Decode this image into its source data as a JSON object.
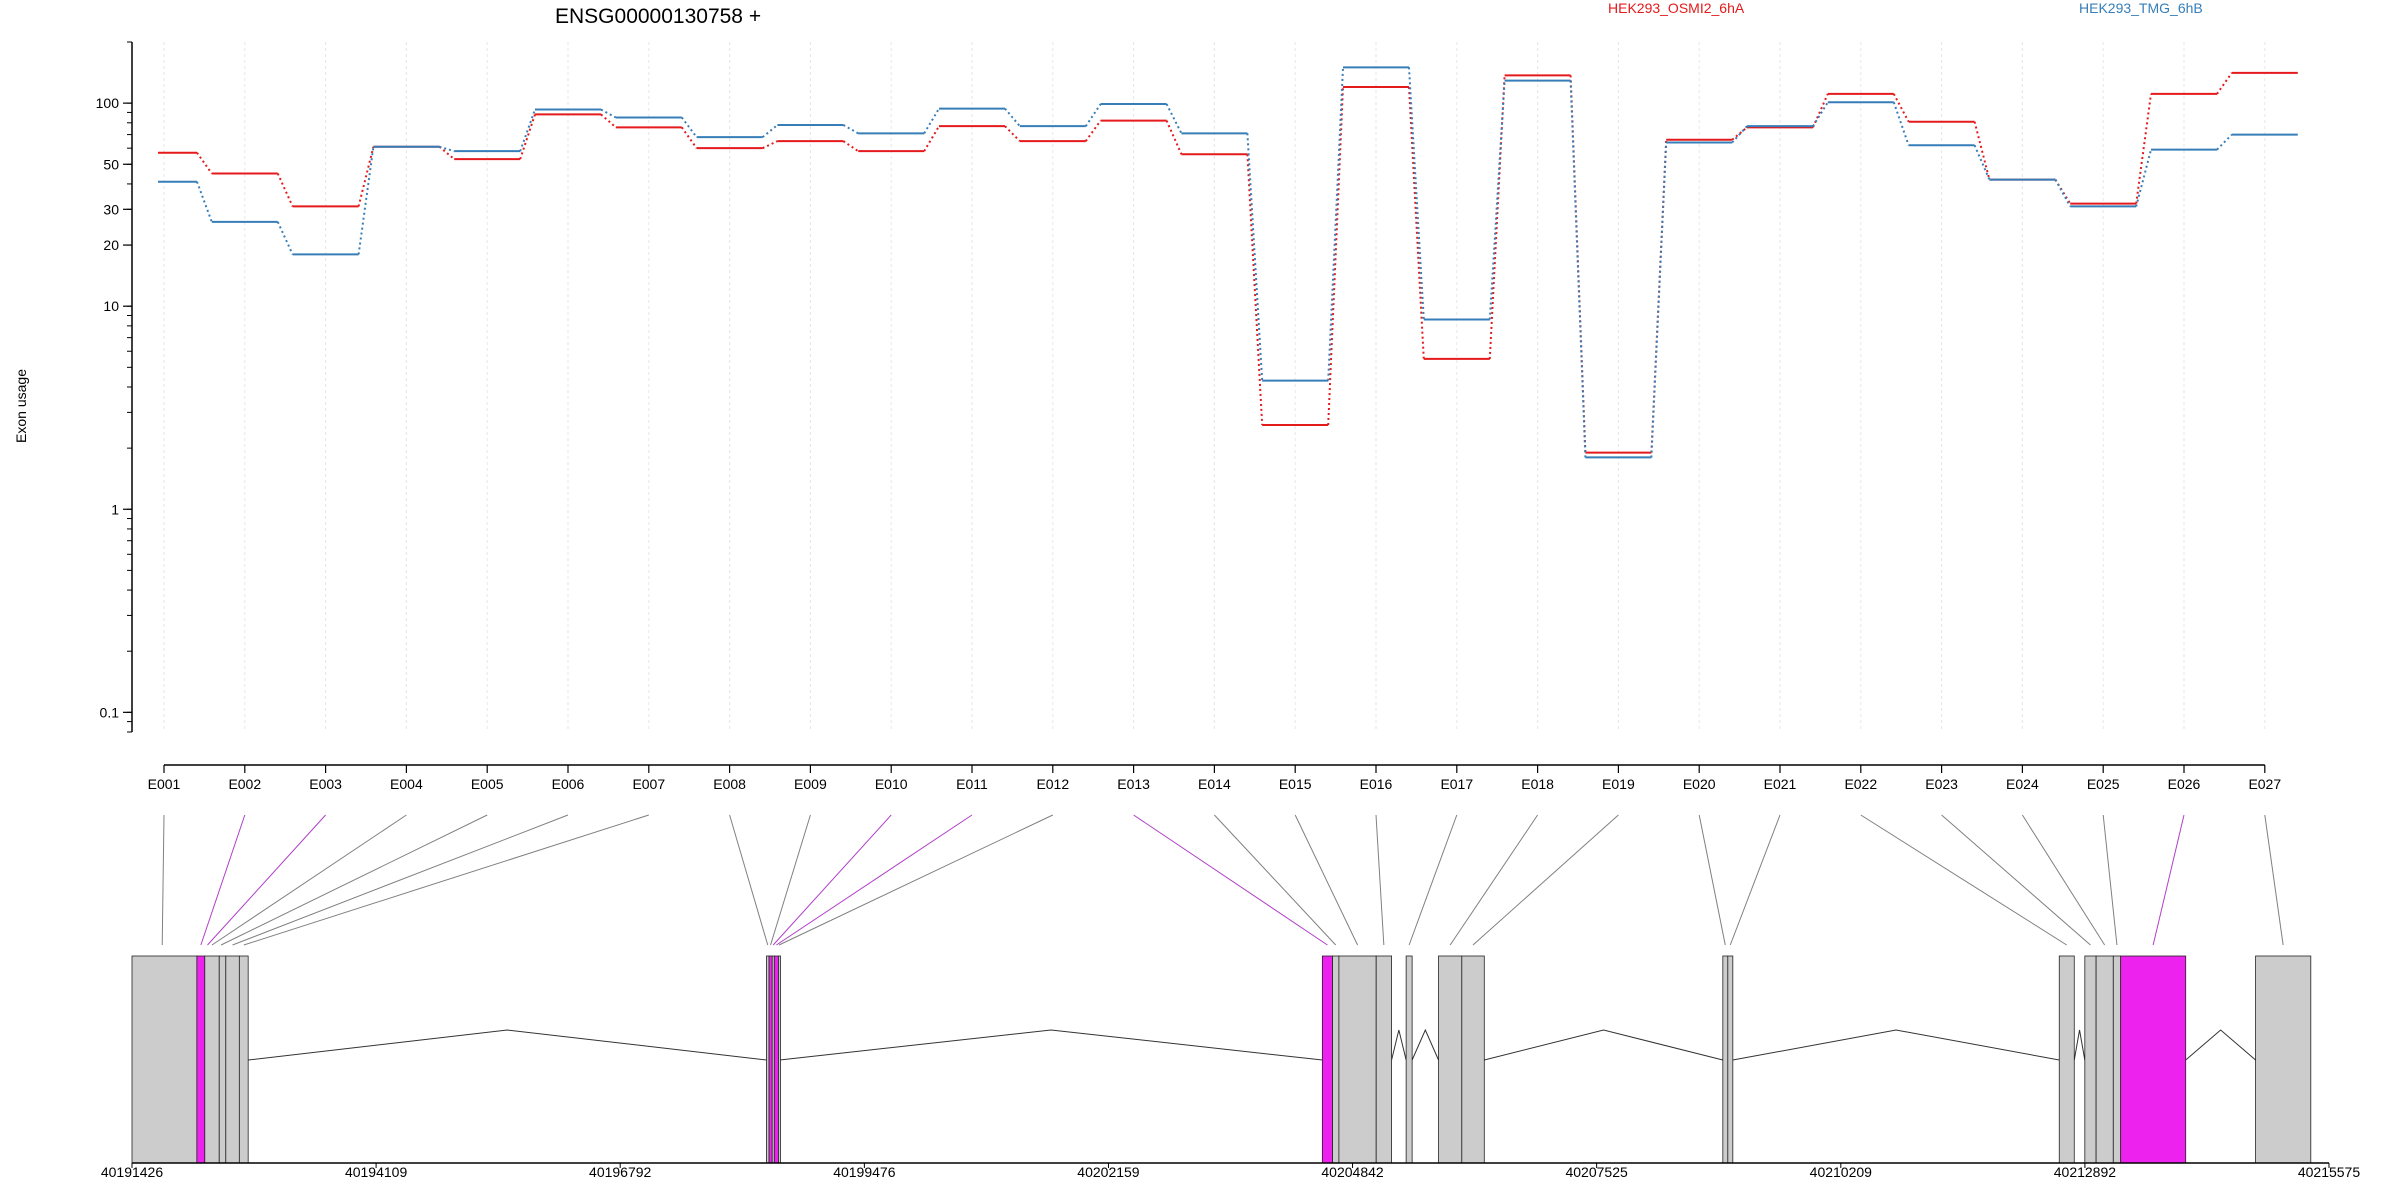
{
  "chart_data": {
    "type": "line",
    "title": "ENSG00000130758 +",
    "ylabel": "Exon usage",
    "xlabel": "",
    "y_scale": "log",
    "ylim": [
      0.08,
      200
    ],
    "y_ticks": [
      0.1,
      1,
      10,
      20,
      30,
      50,
      100
    ],
    "y_tick_labels": [
      "0.1",
      "1",
      "10",
      "20",
      "30",
      "50",
      "100"
    ],
    "grid": "vertical, per exon",
    "legend_placement": "top",
    "categories": [
      "E001",
      "E002",
      "E003",
      "E004",
      "E005",
      "E006",
      "E007",
      "E008",
      "E009",
      "E010",
      "E011",
      "E012",
      "E013",
      "E014",
      "E015",
      "E016",
      "E017",
      "E018",
      "E019",
      "E020",
      "E021",
      "E022",
      "E023",
      "E024",
      "E025",
      "E026",
      "E027"
    ],
    "series": [
      {
        "name": "HEK293_OSMI2_6hA",
        "color": "#e41a1c",
        "values": [
          57,
          45,
          31,
          61,
          53,
          88,
          76,
          60,
          65,
          58,
          77,
          65,
          82,
          56,
          2.6,
          120,
          5.5,
          137,
          1.9,
          66,
          76,
          111,
          81,
          42,
          32,
          111,
          141
        ]
      },
      {
        "name": "HEK293_TMG_6hB",
        "color": "#377eb8",
        "values": [
          41,
          26,
          18,
          61,
          58,
          93,
          85,
          68,
          78,
          71,
          94,
          77,
          99,
          71,
          4.3,
          150,
          8.6,
          129,
          1.8,
          64,
          77,
          101,
          62,
          42,
          31,
          59,
          70
        ]
      }
    ],
    "gene_model": {
      "coord_ticks": [
        "40191426",
        "40194109",
        "40196792",
        "40199476",
        "40202159",
        "40204842",
        "40207525",
        "40210209",
        "40212892",
        "40215575"
      ],
      "exon_color": "#cccccc",
      "highlight_color": "#ee22ee",
      "exon_blocks": [
        {
          "start": 40191426,
          "end": 40192139,
          "hl": false
        },
        {
          "start": 40192139,
          "end": 40192226,
          "hl": true
        },
        {
          "start": 40192226,
          "end": 40192385,
          "hl": false
        },
        {
          "start": 40192385,
          "end": 40192457,
          "hl": false
        },
        {
          "start": 40192457,
          "end": 40192606,
          "hl": false
        },
        {
          "start": 40192606,
          "end": 40192703,
          "hl": false
        },
        {
          "start": 40198400,
          "end": 40198428,
          "hl": false
        },
        {
          "start": 40198428,
          "end": 40198463,
          "hl": true
        },
        {
          "start": 40198463,
          "end": 40198486,
          "hl": false
        },
        {
          "start": 40198486,
          "end": 40198532,
          "hl": true
        },
        {
          "start": 40198532,
          "end": 40198545,
          "hl": false
        },
        {
          "start": 40204510,
          "end": 40204622,
          "hl": true
        },
        {
          "start": 40204622,
          "end": 40204692,
          "hl": false
        },
        {
          "start": 40204692,
          "end": 40205102,
          "hl": false
        },
        {
          "start": 40205102,
          "end": 40205271,
          "hl": false
        },
        {
          "start": 40205431,
          "end": 40205497,
          "hl": false
        },
        {
          "start": 40205787,
          "end": 40206043,
          "hl": false
        },
        {
          "start": 40206043,
          "end": 40206290,
          "hl": false
        },
        {
          "start": 40208912,
          "end": 40208967,
          "hl": false
        },
        {
          "start": 40208967,
          "end": 40209022,
          "hl": false
        },
        {
          "start": 40212610,
          "end": 40212775,
          "hl": false
        },
        {
          "start": 40212891,
          "end": 40213015,
          "hl": false
        },
        {
          "start": 40213015,
          "end": 40213204,
          "hl": false
        },
        {
          "start": 40213204,
          "end": 40213285,
          "hl": false
        },
        {
          "start": 40213285,
          "end": 40214000,
          "hl": true
        },
        {
          "start": 40214768,
          "end": 40215375,
          "hl": false
        }
      ],
      "introns": [
        [
          40192703,
          40198400
        ],
        [
          40198545,
          40204510
        ],
        [
          40205271,
          40205431
        ],
        [
          40205497,
          40205787
        ],
        [
          40206290,
          40208912
        ],
        [
          40209022,
          40212610
        ],
        [
          40212775,
          40212891
        ],
        [
          40214000,
          40214768
        ]
      ],
      "connector_targets": [
        40191758,
        40192183,
        40192256,
        40192305,
        40192405,
        40192531,
        40192655,
        40198414,
        40198445,
        40198474,
        40198509,
        40198538,
        40204566,
        40204657,
        40204897,
        40205186,
        40205464,
        40205915,
        40206166,
        40208939,
        40208994,
        40212692,
        40212953,
        40213109,
        40213244,
        40213642,
        40215071
      ],
      "connector_highlight": [
        false,
        true,
        true,
        false,
        false,
        false,
        false,
        false,
        false,
        true,
        true,
        false,
        true,
        false,
        false,
        false,
        false,
        false,
        false,
        false,
        false,
        false,
        false,
        false,
        false,
        true,
        false
      ]
    }
  }
}
